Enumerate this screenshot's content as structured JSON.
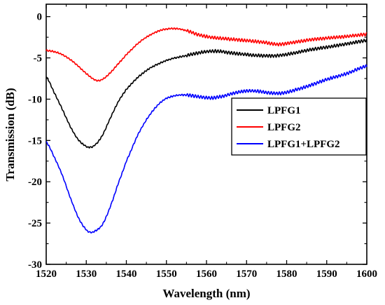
{
  "chart_data": {
    "type": "line",
    "title": "",
    "xlabel": "Wavelength (nm)",
    "ylabel": "Transmission (dB)",
    "xlim": [
      1520,
      1600
    ],
    "ylim": [
      -30,
      1.5
    ],
    "x_ticks": [
      1520,
      1530,
      1540,
      1550,
      1560,
      1570,
      1580,
      1590,
      1600
    ],
    "y_ticks": [
      0,
      -5,
      -10,
      -15,
      -20,
      -25,
      -30
    ],
    "grid": false,
    "legend_position": "right",
    "series": [
      {
        "name": "LPFG1",
        "color": "#000000",
        "noise": 0.12,
        "points": [
          [
            1520,
            -7.3
          ],
          [
            1522,
            -9.2
          ],
          [
            1524,
            -11.2
          ],
          [
            1526,
            -13.3
          ],
          [
            1528,
            -14.9
          ],
          [
            1530,
            -15.7
          ],
          [
            1531,
            -15.8
          ],
          [
            1532,
            -15.6
          ],
          [
            1534,
            -14.4
          ],
          [
            1536,
            -12.3
          ],
          [
            1538,
            -10.3
          ],
          [
            1540,
            -8.8
          ],
          [
            1543,
            -7.3
          ],
          [
            1546,
            -6.2
          ],
          [
            1550,
            -5.3
          ],
          [
            1555,
            -4.7
          ],
          [
            1560,
            -4.25
          ],
          [
            1563,
            -4.2
          ],
          [
            1566,
            -4.4
          ],
          [
            1570,
            -4.6
          ],
          [
            1575,
            -4.75
          ],
          [
            1578,
            -4.7
          ],
          [
            1582,
            -4.4
          ],
          [
            1586,
            -4.0
          ],
          [
            1590,
            -3.7
          ],
          [
            1595,
            -3.3
          ],
          [
            1600,
            -2.9
          ]
        ]
      },
      {
        "name": "LPFG2",
        "color": "#ff0000",
        "noise": 0.12,
        "points": [
          [
            1520,
            -4.1
          ],
          [
            1522,
            -4.25
          ],
          [
            1524,
            -4.6
          ],
          [
            1526,
            -5.2
          ],
          [
            1528,
            -6.0
          ],
          [
            1530,
            -6.9
          ],
          [
            1532,
            -7.6
          ],
          [
            1533,
            -7.75
          ],
          [
            1534,
            -7.6
          ],
          [
            1536,
            -6.8
          ],
          [
            1538,
            -5.7
          ],
          [
            1540,
            -4.6
          ],
          [
            1543,
            -3.2
          ],
          [
            1546,
            -2.2
          ],
          [
            1549,
            -1.6
          ],
          [
            1552,
            -1.45
          ],
          [
            1555,
            -1.7
          ],
          [
            1558,
            -2.2
          ],
          [
            1561,
            -2.5
          ],
          [
            1565,
            -2.7
          ],
          [
            1570,
            -2.9
          ],
          [
            1574,
            -3.1
          ],
          [
            1578,
            -3.35
          ],
          [
            1582,
            -3.1
          ],
          [
            1586,
            -2.8
          ],
          [
            1590,
            -2.6
          ],
          [
            1595,
            -2.4
          ],
          [
            1600,
            -2.15
          ]
        ]
      },
      {
        "name": "LPFG1+LPFG2",
        "color": "#0000ff",
        "noise": 0.12,
        "points": [
          [
            1520,
            -15.2
          ],
          [
            1522,
            -17.0
          ],
          [
            1524,
            -19.2
          ],
          [
            1526,
            -21.9
          ],
          [
            1528,
            -24.3
          ],
          [
            1530,
            -25.8
          ],
          [
            1531,
            -26.1
          ],
          [
            1532,
            -26.0
          ],
          [
            1534,
            -25.2
          ],
          [
            1536,
            -23.0
          ],
          [
            1538,
            -20.2
          ],
          [
            1540,
            -17.5
          ],
          [
            1543,
            -14.2
          ],
          [
            1546,
            -11.8
          ],
          [
            1549,
            -10.2
          ],
          [
            1552,
            -9.6
          ],
          [
            1555,
            -9.5
          ],
          [
            1558,
            -9.7
          ],
          [
            1561,
            -9.85
          ],
          [
            1564,
            -9.65
          ],
          [
            1567,
            -9.25
          ],
          [
            1570,
            -9.0
          ],
          [
            1573,
            -9.05
          ],
          [
            1576,
            -9.25
          ],
          [
            1579,
            -9.25
          ],
          [
            1582,
            -8.9
          ],
          [
            1586,
            -8.3
          ],
          [
            1590,
            -7.6
          ],
          [
            1595,
            -6.9
          ],
          [
            1600,
            -6.0
          ]
        ]
      }
    ]
  }
}
